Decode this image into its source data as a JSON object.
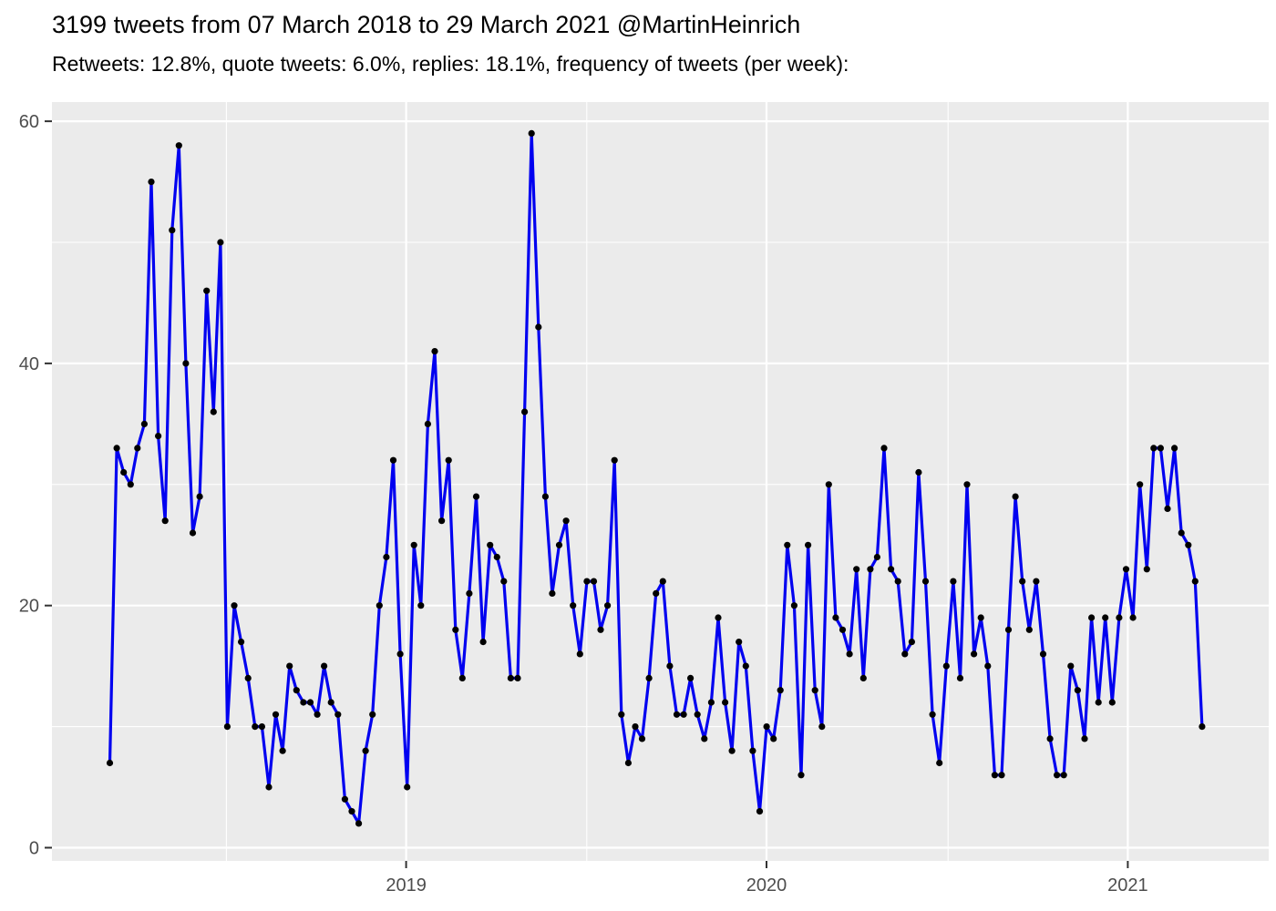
{
  "header": {
    "title": "3199 tweets from 07 March 2018 to 29 March 2021 @MartinHeinrich",
    "subtitle": "Retweets: 12.8%, quote tweets: 6.0%, replies: 18.1%, frequency of tweets (per week):"
  },
  "chart_data": {
    "type": "line",
    "title": "3199 tweets from 07 March 2018 to 29 March 2021 @MartinHeinrich",
    "subtitle": "Retweets: 12.8%, quote tweets: 6.0%, replies: 18.1%, frequency of tweets (per week):",
    "series_name": "tweets-per-week",
    "start_date": "2018-03-07",
    "interval_days": 7,
    "values": [
      7,
      33,
      31,
      30,
      33,
      35,
      55,
      34,
      27,
      51,
      58,
      40,
      26,
      29,
      46,
      36,
      50,
      10,
      20,
      17,
      14,
      10,
      10,
      5,
      11,
      8,
      15,
      13,
      12,
      12,
      11,
      15,
      12,
      11,
      4,
      3,
      2,
      8,
      11,
      20,
      24,
      32,
      16,
      5,
      25,
      20,
      35,
      41,
      27,
      32,
      18,
      14,
      21,
      29,
      17,
      25,
      24,
      22,
      14,
      14,
      36,
      59,
      43,
      29,
      21,
      25,
      27,
      20,
      16,
      22,
      22,
      18,
      20,
      32,
      11,
      7,
      10,
      9,
      14,
      21,
      22,
      15,
      11,
      11,
      14,
      11,
      9,
      12,
      19,
      12,
      8,
      17,
      15,
      8,
      3,
      10,
      9,
      13,
      25,
      20,
      6,
      25,
      13,
      10,
      30,
      19,
      18,
      16,
      23,
      14,
      23,
      24,
      33,
      23,
      22,
      16,
      17,
      31,
      22,
      11,
      7,
      15,
      22,
      14,
      30,
      16,
      19,
      15,
      6,
      6,
      18,
      29,
      22,
      18,
      22,
      16,
      9,
      6,
      6,
      15,
      13,
      9,
      19,
      12,
      19,
      12,
      19,
      23,
      19,
      30,
      23,
      33,
      33,
      28,
      33,
      26,
      25,
      22,
      10
    ],
    "x_ticks": [
      {
        "label": "2019",
        "week": 42.86
      },
      {
        "label": "2020",
        "week": 94.99
      },
      {
        "label": "2021",
        "week": 147.25
      }
    ],
    "x_minor_weeks": [
      16.86,
      68.99,
      121.25
    ],
    "y_ticks": [
      0,
      20,
      40,
      60
    ],
    "y_minor_ticks": [
      10,
      30,
      50
    ],
    "ylim": [
      -1.5,
      61.6
    ],
    "grid": "on",
    "legend_position": "none",
    "colors": {
      "line": "#0000F0",
      "point": "#000000",
      "panel_background": "#EBEBEB",
      "gridline": "#FFFFFF",
      "axis_text": "#4D4D4D",
      "tick_mark": "#333333",
      "title_text": "#000000"
    }
  }
}
